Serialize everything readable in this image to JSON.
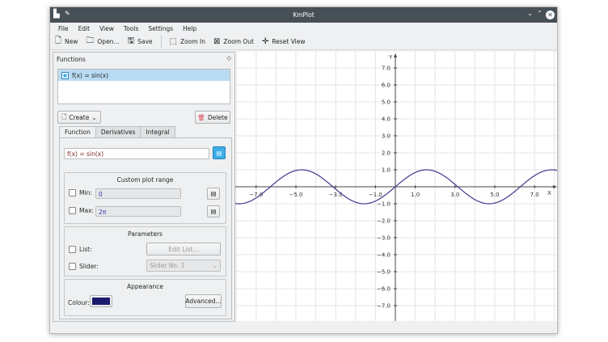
{
  "window": {
    "title": "KmPlot"
  },
  "menu": [
    "File",
    "Edit",
    "View",
    "Tools",
    "Settings",
    "Help"
  ],
  "toolbar": {
    "new": "New",
    "open": "Open...",
    "save": "Save",
    "zoom_in": "Zoom In",
    "zoom_out": "Zoom Out",
    "reset_view": "Reset View"
  },
  "panel": {
    "title": "Functions",
    "functions": [
      {
        "label": "f(x) = sin(x)",
        "checked": true
      }
    ],
    "create": "Create",
    "delete": "Delete",
    "tabs": [
      "Function",
      "Derivatives",
      "Integral"
    ],
    "active_tab": "Function",
    "equation": "f(x) = sin(x)",
    "range": {
      "title": "Custom plot range",
      "min_label": "Min:",
      "min_value": "0",
      "max_label": "Max:",
      "max_value": "2π"
    },
    "params": {
      "title": "Parameters",
      "list_label": "List:",
      "edit_list": "Edit List...",
      "slider_label": "Slider:",
      "slider_value": "Slider No. 1"
    },
    "appearance": {
      "title": "Appearance",
      "colour_label": "Colour:",
      "colour": "#1a1a6e",
      "advanced": "Advanced..."
    }
  },
  "plot": {
    "x_label": "X",
    "y_label": "Y",
    "x_ticks": [
      "−7.0",
      "−5.0",
      "−3.0",
      "−1.0",
      "1.0",
      "3.0",
      "5.0",
      "7.0"
    ],
    "y_ticks": [
      "7.0",
      "6.0",
      "5.0",
      "4.0",
      "3.0",
      "2.0",
      "1.0",
      "−1.0",
      "−2.0",
      "−3.0",
      "−4.0",
      "−5.0",
      "−6.0",
      "−7.0"
    ],
    "function": "sin(x)",
    "curve_color": "#3c3a8c"
  }
}
